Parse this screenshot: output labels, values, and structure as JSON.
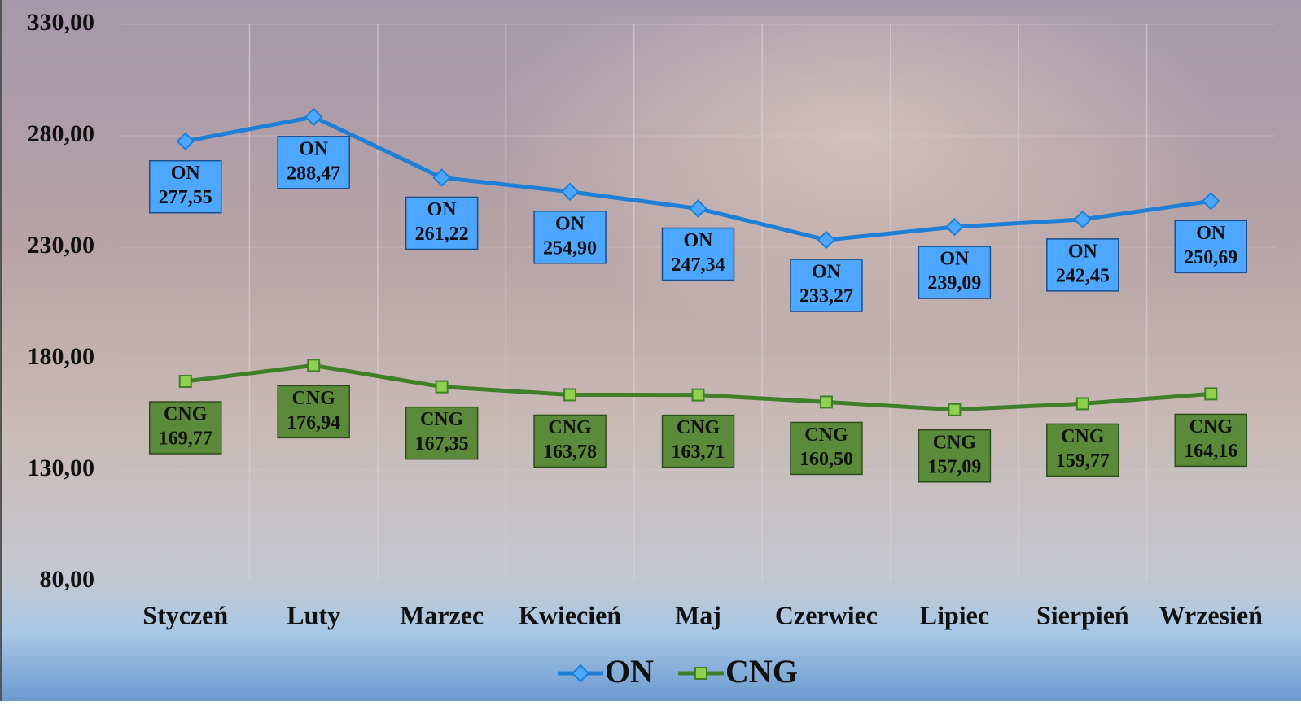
{
  "chart_data": {
    "type": "line",
    "categories": [
      "Styczeń",
      "Luty",
      "Marzec",
      "Kwiecień",
      "Maj",
      "Czerwiec",
      "Lipiec",
      "Sierpień",
      "Wrzesień"
    ],
    "series": [
      {
        "name": "ON",
        "color": "#1f7fd6",
        "label_color": "#4da6ff",
        "values": [
          277.55,
          288.47,
          261.22,
          254.9,
          247.34,
          233.27,
          239.09,
          242.45,
          250.69
        ],
        "value_labels": [
          "277,55",
          "288,47",
          "261,22",
          "254,90",
          "247,34",
          "233,27",
          "239,09",
          "242,45",
          "250,69"
        ]
      },
      {
        "name": "CNG",
        "color": "#3f7f2a",
        "label_color": "#5a8a3a",
        "values": [
          169.77,
          176.94,
          167.35,
          163.78,
          163.71,
          160.5,
          157.09,
          159.77,
          164.16
        ],
        "value_labels": [
          "169,77",
          "176,94",
          "167,35",
          "163,78",
          "163,71",
          "160,50",
          "157,09",
          "159,77",
          "164,16"
        ]
      }
    ],
    "ylim": [
      80,
      330
    ],
    "yticks": [
      {
        "value": 80,
        "label": "80,00"
      },
      {
        "value": 130,
        "label": "130,00"
      },
      {
        "value": 180,
        "label": "180,00"
      },
      {
        "value": 230,
        "label": "230,00"
      },
      {
        "value": 280,
        "label": "280,00"
      },
      {
        "value": 330,
        "label": "330,00"
      }
    ],
    "grid": true,
    "legend": "bottom"
  }
}
